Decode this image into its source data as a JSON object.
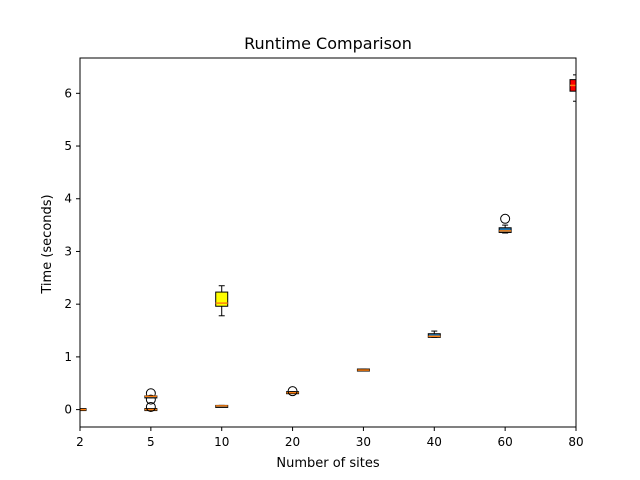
{
  "chart_data": {
    "type": "boxplot",
    "title": "Runtime Comparison",
    "xlabel": "Number of sites",
    "ylabel": "Time (seconds)",
    "x_ticks": [
      "2",
      "5",
      "10",
      "20",
      "30",
      "40",
      "60",
      "80"
    ],
    "y_ticks": [
      "0",
      "1",
      "2",
      "3",
      "4",
      "5",
      "6"
    ],
    "ylim": [
      -0.33,
      6.67
    ],
    "grid": false,
    "colors": {
      "median": "#ff7f0e",
      "outlier_edge": "#000000",
      "highlight_yellow": "#ffff00",
      "highlight_red": "#ff0000",
      "default_box_fill": "#1f77b4"
    },
    "series": [
      {
        "sites": "2",
        "position": 0,
        "whisker_low": 0.0,
        "q1": 0.0,
        "median": 0.0,
        "q3": 0.01,
        "whisker_high": 0.01,
        "outliers": [],
        "fill": "#1f77b4"
      },
      {
        "sites": "5",
        "position": 1,
        "whisker_low": 0.0,
        "q1": 0.0,
        "median": 0.0,
        "q3": 0.01,
        "whisker_high": 0.01,
        "outliers": [
          0.05,
          0.19,
          0.31
        ],
        "fill": "#1f77b4"
      },
      {
        "sites": "5",
        "position": 1,
        "whisker_low": 0.24,
        "q1": 0.24,
        "median": 0.25,
        "q3": 0.25,
        "whisker_high": 0.26,
        "outliers": [],
        "fill": "#1f77b4"
      },
      {
        "sites": "10",
        "position": 2,
        "whisker_low": 0.06,
        "q1": 0.06,
        "median": 0.07,
        "q3": 0.07,
        "whisker_high": 0.08,
        "outliers": [],
        "fill": "#1f77b4"
      },
      {
        "sites": "10",
        "position": 2,
        "whisker_low": 1.78,
        "q1": 1.97,
        "median": 2.02,
        "q3": 2.22,
        "whisker_high": 2.35,
        "outliers": [],
        "fill": "#ffff00"
      },
      {
        "sites": "20",
        "position": 3,
        "whisker_low": 0.31,
        "q1": 0.32,
        "median": 0.32,
        "q3": 0.33,
        "whisker_high": 0.34,
        "outliers": [
          0.35
        ],
        "fill": "#1f77b4"
      },
      {
        "sites": "30",
        "position": 4,
        "whisker_low": 0.74,
        "q1": 0.75,
        "median": 0.75,
        "q3": 0.76,
        "whisker_high": 0.77,
        "outliers": [],
        "fill": "#1f77b4"
      },
      {
        "sites": "40",
        "position": 5,
        "whisker_low": 1.37,
        "q1": 1.38,
        "median": 1.39,
        "q3": 1.43,
        "whisker_high": 1.49,
        "outliers": [],
        "fill": "#1f77b4"
      },
      {
        "sites": "60",
        "position": 6,
        "whisker_low": 3.35,
        "q1": 3.37,
        "median": 3.39,
        "q3": 3.44,
        "whisker_high": 3.5,
        "outliers": [
          3.62
        ],
        "fill": "#1f77b4"
      },
      {
        "sites": "80",
        "position": 7,
        "whisker_low": 5.85,
        "q1": 6.05,
        "median": 6.15,
        "q3": 6.25,
        "whisker_high": 6.35,
        "outliers": [],
        "fill": "#ff0000"
      }
    ]
  }
}
